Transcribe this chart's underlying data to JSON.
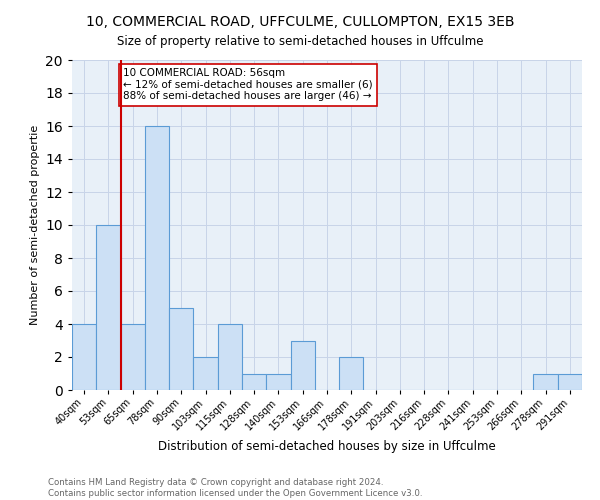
{
  "title": "10, COMMERCIAL ROAD, UFFCULME, CULLOMPTON, EX15 3EB",
  "subtitle": "Size of property relative to semi-detached houses in Uffculme",
  "xlabel": "Distribution of semi-detached houses by size in Uffculme",
  "ylabel": "Number of semi-detached propertie",
  "categories": [
    "40sqm",
    "53sqm",
    "65sqm",
    "78sqm",
    "90sqm",
    "103sqm",
    "115sqm",
    "128sqm",
    "140sqm",
    "153sqm",
    "166sqm",
    "178sqm",
    "191sqm",
    "203sqm",
    "216sqm",
    "228sqm",
    "241sqm",
    "253sqm",
    "266sqm",
    "278sqm",
    "291sqm"
  ],
  "values": [
    4,
    10,
    4,
    16,
    5,
    2,
    4,
    1,
    1,
    3,
    0,
    2,
    0,
    0,
    0,
    0,
    0,
    0,
    0,
    1,
    1
  ],
  "bar_color": "#cce0f5",
  "bar_edge_color": "#5b9bd5",
  "vline_x": 1.5,
  "property_line_label": "10 COMMERCIAL ROAD: 56sqm",
  "annotation_line1": "← 12% of semi-detached houses are smaller (6)",
  "annotation_line2": "88% of semi-detached houses are larger (46) →",
  "vline_color": "#cc0000",
  "annotation_box_edge": "#cc0000",
  "ylim": [
    0,
    20
  ],
  "yticks": [
    0,
    2,
    4,
    6,
    8,
    10,
    12,
    14,
    16,
    18,
    20
  ],
  "footer1": "Contains HM Land Registry data © Crown copyright and database right 2024.",
  "footer2": "Contains public sector information licensed under the Open Government Licence v3.0.",
  "background_color": "#ffffff",
  "axes_bg_color": "#e8f0f8",
  "grid_color": "#c8d4e8"
}
